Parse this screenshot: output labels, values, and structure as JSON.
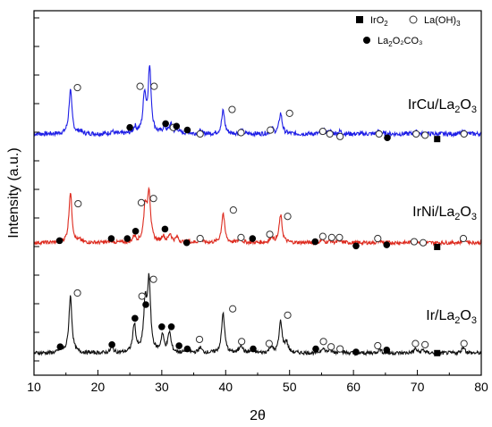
{
  "chart_data": {
    "type": "line",
    "xlabel": "2θ",
    "ylabel": "Intensity (a.u.)",
    "xlim": [
      10,
      80
    ],
    "x_ticks": [
      "10",
      "20",
      "30",
      "40",
      "50",
      "60",
      "70",
      "80"
    ],
    "grid": false,
    "legend": {
      "placement": "top-right",
      "entries": [
        {
          "marker": "filled-square",
          "label_main": "IrO",
          "label_sub": "2",
          "label_tail": ""
        },
        {
          "marker": "open-circle",
          "label_main": "La(OH)",
          "label_sub": "3",
          "label_tail": ""
        },
        {
          "marker": "filled-circle",
          "label_main": "La",
          "label_sub": "2",
          "label_tail": "O₂CO₃"
        }
      ]
    },
    "series": [
      {
        "name_main": "IrCu/La",
        "name_sub": "2",
        "name_tail": "O",
        "name_sub2": "3",
        "color": "#1e1ee6",
        "baseline": 0.07,
        "scale": 1.0,
        "peaks": [
          [
            15.7,
            0.34
          ],
          [
            17.2,
            0.02
          ],
          [
            22.2,
            0.02
          ],
          [
            25.8,
            0.05
          ],
          [
            27.3,
            0.3
          ],
          [
            28.1,
            0.5
          ],
          [
            30.4,
            0.05
          ],
          [
            31.4,
            0.07
          ],
          [
            32.5,
            0.03
          ],
          [
            34.1,
            0.02
          ],
          [
            36.0,
            0.02
          ],
          [
            39.6,
            0.18
          ],
          [
            42.4,
            0.03
          ],
          [
            47.2,
            0.04
          ],
          [
            48.6,
            0.16
          ],
          [
            55.3,
            0.03
          ],
          [
            56.3,
            0.02
          ],
          [
            57.9,
            0.02
          ],
          [
            64.0,
            0.02
          ],
          [
            69.7,
            0.02
          ],
          [
            77.3,
            0.02
          ]
        ],
        "open_circles": [
          [
            16.8,
            0.43
          ],
          [
            26.6,
            0.44
          ],
          [
            28.8,
            0.44
          ],
          [
            41.0,
            0.26
          ],
          [
            50.0,
            0.23
          ],
          [
            31.8,
            0.12
          ],
          [
            36.0,
            0.07
          ],
          [
            42.4,
            0.08
          ],
          [
            47.0,
            0.1
          ],
          [
            55.2,
            0.09
          ],
          [
            56.3,
            0.07
          ],
          [
            57.9,
            0.05
          ],
          [
            64.0,
            0.07
          ],
          [
            69.8,
            0.07
          ],
          [
            71.2,
            0.06
          ],
          [
            77.3,
            0.07
          ]
        ],
        "filled_circles": [
          [
            25.0,
            0.12
          ],
          [
            30.6,
            0.15
          ],
          [
            32.3,
            0.13
          ],
          [
            34.0,
            0.1
          ],
          [
            65.3,
            0.04
          ]
        ],
        "filled_squares": [
          [
            73.1,
            0.03
          ]
        ]
      },
      {
        "name_main": "IrNi/La",
        "name_sub": "2",
        "name_tail": "O",
        "name_sub2": "3",
        "color": "#dd2a1e",
        "baseline": 0.07,
        "scale": 1.0,
        "peaks": [
          [
            14.2,
            0.01
          ],
          [
            15.7,
            0.48
          ],
          [
            17.2,
            0.02
          ],
          [
            22.1,
            0.02
          ],
          [
            25.7,
            0.06
          ],
          [
            27.4,
            0.33
          ],
          [
            28.0,
            0.47
          ],
          [
            30.2,
            0.06
          ],
          [
            31.3,
            0.08
          ],
          [
            32.4,
            0.05
          ],
          [
            34.1,
            0.02
          ],
          [
            36.0,
            0.03
          ],
          [
            39.6,
            0.28
          ],
          [
            42.3,
            0.04
          ],
          [
            47.2,
            0.06
          ],
          [
            48.6,
            0.26
          ],
          [
            55.1,
            0.03
          ],
          [
            56.4,
            0.02
          ],
          [
            58.0,
            0.02
          ],
          [
            64.1,
            0.02
          ],
          [
            69.8,
            0.02
          ],
          [
            77.4,
            0.04
          ]
        ],
        "open_circles": [
          [
            16.9,
            0.44
          ],
          [
            26.8,
            0.45
          ],
          [
            28.7,
            0.49
          ],
          [
            41.2,
            0.38
          ],
          [
            49.7,
            0.32
          ],
          [
            36.0,
            0.11
          ],
          [
            42.4,
            0.12
          ],
          [
            46.9,
            0.15
          ],
          [
            55.2,
            0.13
          ],
          [
            56.6,
            0.12
          ],
          [
            57.8,
            0.12
          ],
          [
            63.8,
            0.11
          ],
          [
            69.5,
            0.08
          ],
          [
            70.9,
            0.07
          ],
          [
            77.2,
            0.11
          ]
        ],
        "filled_circles": [
          [
            14.0,
            0.09
          ],
          [
            22.1,
            0.11
          ],
          [
            24.6,
            0.11
          ],
          [
            25.9,
            0.18
          ],
          [
            30.5,
            0.2
          ],
          [
            33.9,
            0.07
          ],
          [
            44.2,
            0.11
          ],
          [
            54.0,
            0.08
          ],
          [
            60.4,
            0.04
          ],
          [
            65.2,
            0.05
          ]
        ],
        "filled_squares": [
          [
            73.1,
            0.03
          ]
        ]
      },
      {
        "name_main": "Ir/La",
        "name_sub": "2",
        "name_tail": "O",
        "name_sub2": "3",
        "color": "#111111",
        "baseline": 0.04,
        "scale": 1.0,
        "peaks": [
          [
            14.2,
            0.04
          ],
          [
            15.7,
            0.54
          ],
          [
            22.2,
            0.05
          ],
          [
            25.7,
            0.27
          ],
          [
            27.4,
            0.45
          ],
          [
            28.0,
            0.67
          ],
          [
            30.1,
            0.16
          ],
          [
            31.2,
            0.19
          ],
          [
            34.0,
            0.04
          ],
          [
            36.0,
            0.05
          ],
          [
            39.6,
            0.38
          ],
          [
            42.4,
            0.08
          ],
          [
            44.2,
            0.03
          ],
          [
            47.1,
            0.06
          ],
          [
            48.6,
            0.3
          ],
          [
            49.5,
            0.1
          ],
          [
            55.2,
            0.05
          ],
          [
            56.3,
            0.03
          ],
          [
            58.0,
            0.03
          ],
          [
            64.1,
            0.04
          ],
          [
            69.7,
            0.04
          ],
          [
            70.9,
            0.03
          ],
          [
            77.2,
            0.06
          ]
        ],
        "open_circles": [
          [
            16.8,
            0.61
          ],
          [
            26.9,
            0.58
          ],
          [
            28.7,
            0.74
          ],
          [
            41.1,
            0.46
          ],
          [
            49.7,
            0.4
          ],
          [
            35.9,
            0.17
          ],
          [
            42.5,
            0.15
          ],
          [
            46.8,
            0.13
          ],
          [
            55.3,
            0.15
          ],
          [
            56.5,
            0.1
          ],
          [
            57.9,
            0.08
          ],
          [
            63.8,
            0.11
          ],
          [
            69.7,
            0.13
          ],
          [
            71.2,
            0.12
          ],
          [
            77.3,
            0.13
          ]
        ],
        "filled_circles": [
          [
            14.1,
            0.1
          ],
          [
            22.2,
            0.12
          ],
          [
            25.8,
            0.37
          ],
          [
            27.5,
            0.5
          ],
          [
            30.0,
            0.29
          ],
          [
            31.5,
            0.29
          ],
          [
            32.7,
            0.11
          ],
          [
            34.0,
            0.08
          ],
          [
            44.3,
            0.08
          ],
          [
            54.1,
            0.08
          ],
          [
            60.4,
            0.05
          ],
          [
            65.2,
            0.07
          ]
        ],
        "filled_squares": [
          [
            73.1,
            0.04
          ]
        ]
      }
    ]
  },
  "colors": {
    "axis": "#000000",
    "background": "#ffffff"
  }
}
